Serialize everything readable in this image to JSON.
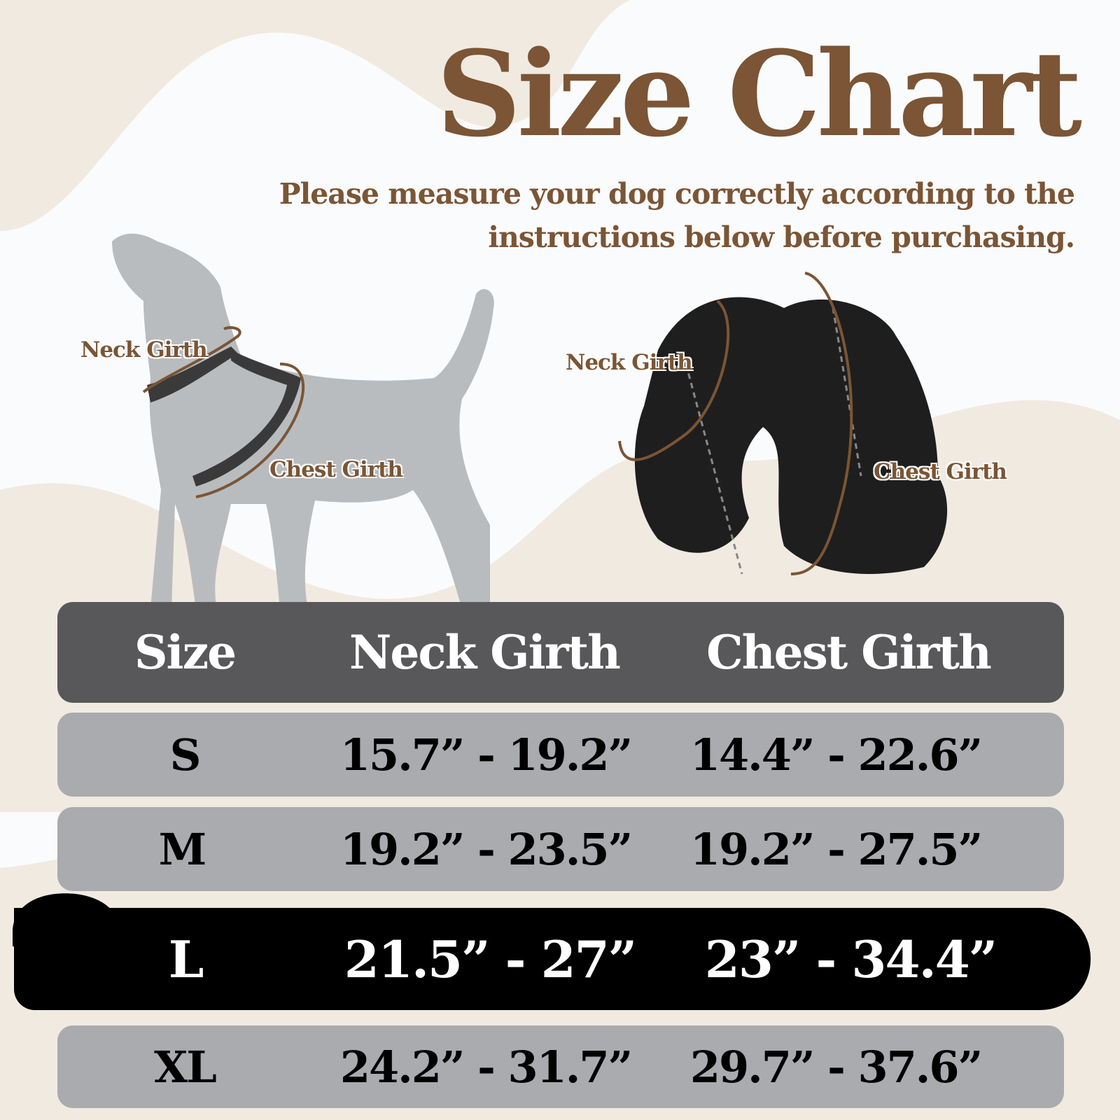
{
  "title": "Size Chart",
  "subtitle_line1": "Please measure your dog correctly according to the",
  "subtitle_line2": "instructions below before purchasing.",
  "dog_diagram": {
    "neck_label": "Neck Girth",
    "chest_label": "Chest Girth"
  },
  "harness_diagram": {
    "neck_label": "Neck Girth",
    "chest_label": "Chest Girth"
  },
  "colors": {
    "brown": "#7b5535",
    "header": "#58585a",
    "row": "#a9abae",
    "highlight": "#000000",
    "background": "#f1eae0"
  },
  "table": {
    "headers": [
      "Size",
      "Neck Girth",
      "Chest Girth"
    ],
    "rows": [
      {
        "size": "S",
        "neck": "15.7” - 19.2”",
        "chest": "14.4” - 22.6”"
      },
      {
        "size": "M",
        "neck": "19.2” - 23.5”",
        "chest": "19.2” - 27.5”"
      },
      {
        "size": "L",
        "neck": "21.5” - 27”",
        "chest": "23” - 34.4”",
        "highlighted": true
      },
      {
        "size": "XL",
        "neck": "24.2” - 31.7”",
        "chest": "29.7” - 37.6”"
      }
    ]
  }
}
